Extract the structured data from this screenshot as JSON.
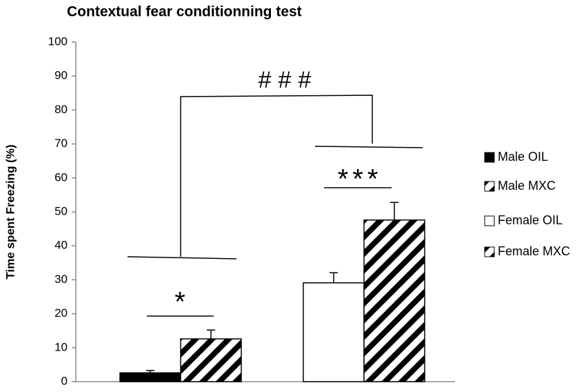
{
  "chart_data": {
    "type": "bar",
    "title": "Contextual fear conditionning test",
    "y_label": "Time spent Freezing (%)",
    "categories": [
      null,
      null
    ],
    "series": [
      {
        "name": "Male OIL",
        "color": "#000000",
        "hatch": false,
        "values": [
          2.6,
          null
        ],
        "errors": [
          0.7,
          null
        ]
      },
      {
        "name": "Male MXC",
        "color": "#000000",
        "hatch": true,
        "values": [
          12.6,
          null
        ],
        "errors": [
          2.6,
          null
        ]
      },
      {
        "name": "Female OIL",
        "color": "#ffffff",
        "hatch": false,
        "values": [
          null,
          29.1
        ],
        "errors": [
          null,
          3
        ]
      },
      {
        "name": "Female MXC",
        "color": "#000000",
        "hatch": true,
        "values": [
          null,
          47.6
        ],
        "errors": [
          null,
          5.2
        ]
      }
    ],
    "annotations": [
      "*",
      "***",
      "###"
    ],
    "ylim": [
      0,
      100
    ],
    "yticks": [
      0,
      10,
      20,
      30,
      40,
      50,
      60,
      70,
      80,
      90,
      100
    ],
    "grid": false,
    "legend": "right"
  }
}
